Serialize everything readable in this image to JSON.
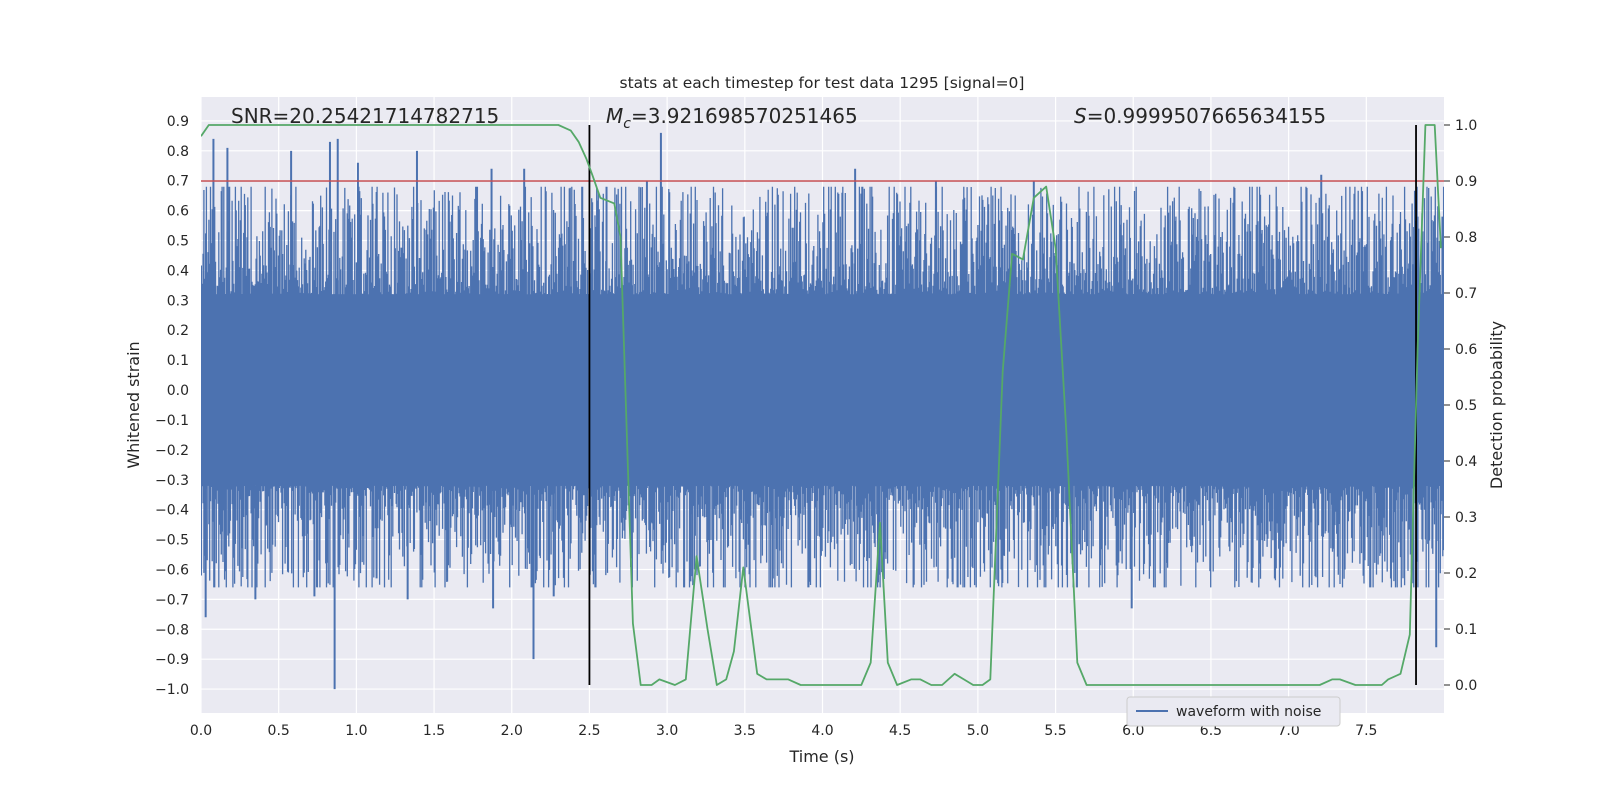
{
  "chart_data": {
    "type": "line",
    "title": "stats at each timestep for test data 1295 [signal=0]",
    "xlabel": "Time (s)",
    "ylabel_left": "Whitened strain",
    "ylabel_right": "Detection probability",
    "xlim": [
      0.0,
      8.0
    ],
    "ylim_left": [
      -1.08,
      0.98
    ],
    "ylim_right": [
      -0.05,
      1.05
    ],
    "x_ticks": [
      "0.0",
      "0.5",
      "1.0",
      "1.5",
      "2.0",
      "2.5",
      "3.0",
      "3.5",
      "4.0",
      "4.5",
      "5.0",
      "5.5",
      "6.0",
      "6.5",
      "7.0",
      "7.5"
    ],
    "y_ticks_left": [
      "0.9",
      "0.8",
      "0.7",
      "0.6",
      "0.5",
      "0.4",
      "0.3",
      "0.2",
      "0.1",
      "0.0",
      "−0.1",
      "−0.2",
      "−0.3",
      "−0.4",
      "−0.5",
      "−0.6",
      "−0.7",
      "−0.8",
      "−0.9",
      "−1.0"
    ],
    "y_ticks_right": [
      "1.0",
      "0.9",
      "0.8",
      "0.7",
      "0.6",
      "0.5",
      "0.4",
      "0.3",
      "0.2",
      "0.1",
      "0.0"
    ],
    "annotations": {
      "snr": "SNR=20.25421714782715",
      "mc_symbol": "M",
      "mc_sub": "c",
      "mc_value": "=3.921698570251465",
      "s_symbol": "S",
      "s_value": "=0.9999507665634155"
    },
    "threshold": {
      "value": 0.9,
      "axis": "right",
      "color": "#c44e52"
    },
    "event_lines": {
      "x": [
        2.5,
        7.82
      ],
      "color": "#000000"
    },
    "legend": {
      "label": "waveform with noise",
      "position": "lower-right"
    },
    "series": [
      {
        "name": "waveform with noise",
        "axis": "left",
        "color": "#4c72b0",
        "style": "dense-noise",
        "core_amplitude": 0.32,
        "typical_peak": 0.45,
        "spikes": [
          {
            "t": 0.0,
            "v": -0.62
          },
          {
            "t": 0.03,
            "v": -0.76
          },
          {
            "t": 0.08,
            "v": 0.84
          },
          {
            "t": 0.17,
            "v": 0.81
          },
          {
            "t": 0.35,
            "v": -0.7
          },
          {
            "t": 0.58,
            "v": 0.8
          },
          {
            "t": 0.73,
            "v": -0.69
          },
          {
            "t": 0.83,
            "v": 0.83
          },
          {
            "t": 0.86,
            "v": -1.0
          },
          {
            "t": 0.88,
            "v": 0.84
          },
          {
            "t": 1.01,
            "v": 0.76
          },
          {
            "t": 1.13,
            "v": -0.63
          },
          {
            "t": 1.33,
            "v": -0.7
          },
          {
            "t": 1.39,
            "v": 0.8
          },
          {
            "t": 1.87,
            "v": 0.74
          },
          {
            "t": 1.88,
            "v": -0.73
          },
          {
            "t": 2.08,
            "v": 0.74
          },
          {
            "t": 2.14,
            "v": -0.9
          },
          {
            "t": 2.27,
            "v": -0.69
          },
          {
            "t": 2.61,
            "v": 0.68
          },
          {
            "t": 2.87,
            "v": 0.7
          },
          {
            "t": 2.96,
            "v": 0.86
          },
          {
            "t": 3.15,
            "v": -0.64
          },
          {
            "t": 4.21,
            "v": 0.74
          },
          {
            "t": 4.73,
            "v": 0.7
          },
          {
            "t": 5.36,
            "v": 0.7
          },
          {
            "t": 5.99,
            "v": -0.73
          },
          {
            "t": 7.21,
            "v": 0.72
          },
          {
            "t": 7.95,
            "v": -0.86
          },
          {
            "t": 7.99,
            "v": 0.58
          }
        ]
      },
      {
        "name": "detection probability",
        "axis": "right",
        "color": "#55a868",
        "x": [
          0.0,
          0.05,
          0.1,
          0.2,
          0.5,
          1.0,
          1.5,
          2.0,
          2.3,
          2.38,
          2.43,
          2.48,
          2.52,
          2.57,
          2.66,
          2.7,
          2.78,
          2.83,
          2.9,
          2.95,
          3.05,
          3.12,
          3.19,
          3.26,
          3.32,
          3.38,
          3.43,
          3.49,
          3.58,
          3.64,
          3.7,
          3.78,
          3.86,
          4.0,
          4.15,
          4.25,
          4.31,
          4.37,
          4.42,
          4.48,
          4.57,
          4.63,
          4.7,
          4.77,
          4.85,
          4.91,
          4.97,
          5.03,
          5.08,
          5.16,
          5.22,
          5.29,
          5.36,
          5.44,
          5.5,
          5.57,
          5.64,
          5.7,
          5.8,
          5.95,
          6.1,
          6.35,
          6.5,
          7.0,
          7.2,
          7.28,
          7.33,
          7.43,
          7.53,
          7.6,
          7.64,
          7.72,
          7.78,
          7.83,
          7.88,
          7.94,
          7.98
        ],
        "y": [
          0.98,
          1.0,
          1.0,
          1.0,
          1.0,
          1.0,
          1.0,
          1.0,
          1.0,
          0.99,
          0.97,
          0.94,
          0.91,
          0.87,
          0.86,
          0.8,
          0.11,
          0.0,
          0.0,
          0.01,
          0.0,
          0.01,
          0.23,
          0.1,
          0.0,
          0.01,
          0.06,
          0.21,
          0.02,
          0.01,
          0.01,
          0.01,
          0.0,
          0.0,
          0.0,
          0.0,
          0.04,
          0.29,
          0.04,
          0.0,
          0.01,
          0.01,
          0.0,
          0.0,
          0.02,
          0.01,
          0.0,
          0.0,
          0.01,
          0.56,
          0.77,
          0.76,
          0.87,
          0.89,
          0.78,
          0.45,
          0.04,
          0.0,
          0.0,
          0.0,
          0.0,
          0.0,
          0.0,
          0.0,
          0.0,
          0.01,
          0.01,
          0.0,
          0.0,
          0.0,
          0.01,
          0.02,
          0.09,
          0.6,
          1.0,
          1.0,
          0.78
        ]
      }
    ]
  }
}
